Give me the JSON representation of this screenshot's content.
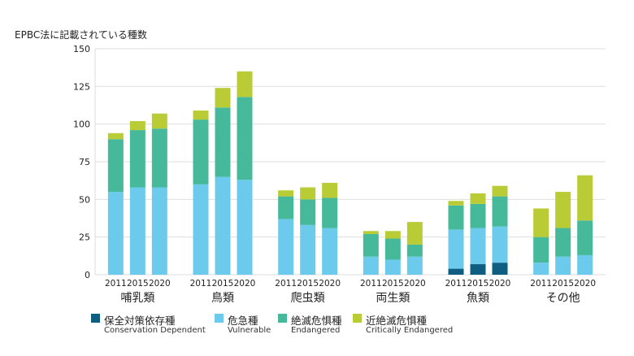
{
  "chart_data": {
    "type": "bar",
    "stacked": true,
    "ylabel": "EPBC法に記載されている種数",
    "ylim": [
      0,
      150
    ],
    "yticks": [
      0,
      25,
      50,
      75,
      100,
      125,
      150
    ],
    "grid": true,
    "legend_position": "bottom",
    "groups": [
      "哺乳類",
      "鳥類",
      "爬虫類",
      "両生類",
      "魚類",
      "その他"
    ],
    "years": [
      "2011",
      "2015",
      "2020"
    ],
    "series": [
      {
        "name": "保全対策依存種",
        "name_en": "Conservation Dependent",
        "color": "#0e5e82",
        "values": [
          [
            0,
            0,
            0
          ],
          [
            0,
            0,
            0
          ],
          [
            0,
            0,
            0
          ],
          [
            0,
            0,
            0
          ],
          [
            4,
            7,
            8
          ],
          [
            0,
            0,
            0
          ]
        ]
      },
      {
        "name": "危急種",
        "name_en": "Vulnerable",
        "color": "#6ccbec",
        "values": [
          [
            55,
            58,
            58
          ],
          [
            60,
            65,
            63
          ],
          [
            37,
            33,
            31
          ],
          [
            12,
            10,
            12
          ],
          [
            26,
            24,
            24
          ],
          [
            8,
            12,
            13
          ]
        ]
      },
      {
        "name": "絶滅危惧種",
        "name_en": "Endangered",
        "color": "#45b99a",
        "values": [
          [
            35,
            38,
            39
          ],
          [
            43,
            46,
            55
          ],
          [
            15,
            17,
            20
          ],
          [
            15,
            14,
            8
          ],
          [
            16,
            16,
            20
          ],
          [
            17,
            19,
            23
          ]
        ]
      },
      {
        "name": "近絶滅危惧種",
        "name_en": "Critically Endangered",
        "color": "#b9cc35",
        "values": [
          [
            4,
            6,
            10
          ],
          [
            6,
            13,
            17
          ],
          [
            4,
            8,
            10
          ],
          [
            2,
            5,
            15
          ],
          [
            3,
            7,
            7
          ],
          [
            19,
            24,
            30
          ]
        ]
      }
    ]
  }
}
